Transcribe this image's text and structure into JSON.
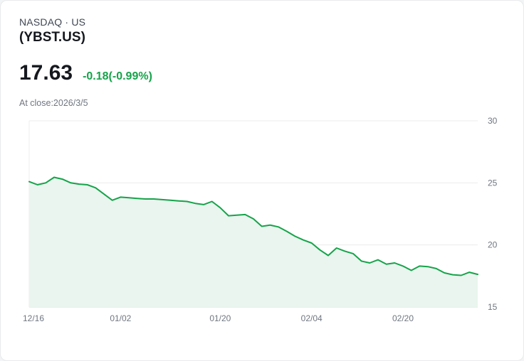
{
  "card": {
    "exchange": "NASDAQ · US",
    "ticker": "(YBST.US)",
    "price": "17.63",
    "change": "-0.18(-0.99%)",
    "as_of": "At close:2026/3/5"
  },
  "colors": {
    "accent_green": "#16a34a",
    "text_dark": "#15181e",
    "text_gray": "#6f7680",
    "grid": "#ececec",
    "axis": "#d7dade"
  },
  "chart_data": {
    "type": "area",
    "title": "YBST.US price history",
    "xlabel": "",
    "ylabel": "",
    "ylim": [
      15,
      30
    ],
    "yticks": [
      15,
      20,
      25,
      30
    ],
    "grid": true,
    "legend": "none",
    "line_color": "#16a34a",
    "area_fill": "#e9f5ee",
    "xticks": [
      {
        "label": "12/16",
        "i": 0
      },
      {
        "label": "01/02",
        "i": 11
      },
      {
        "label": "01/20",
        "i": 23
      },
      {
        "label": "02/04",
        "i": 34
      },
      {
        "label": "02/20",
        "i": 45
      }
    ],
    "values": [
      25.1,
      24.85,
      25.0,
      25.45,
      25.3,
      25.0,
      24.9,
      24.85,
      24.6,
      24.1,
      23.6,
      23.85,
      23.8,
      23.75,
      23.7,
      23.7,
      23.65,
      23.6,
      23.55,
      23.5,
      23.35,
      23.25,
      23.5,
      23.0,
      22.35,
      22.4,
      22.45,
      22.1,
      21.5,
      21.6,
      21.45,
      21.1,
      20.7,
      20.4,
      20.15,
      19.6,
      19.15,
      19.75,
      19.5,
      19.3,
      18.7,
      18.55,
      18.8,
      18.45,
      18.55,
      18.3,
      17.95,
      18.3,
      18.25,
      18.1,
      17.75,
      17.6,
      17.55,
      17.8,
      17.63
    ]
  }
}
